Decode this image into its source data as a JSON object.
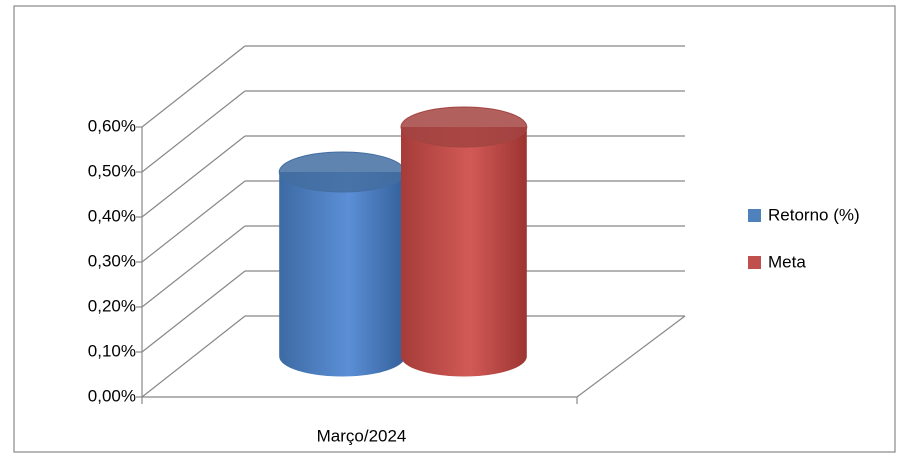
{
  "chart_data": {
    "type": "bar3d-cylinder",
    "categories": [
      "Março/2024"
    ],
    "series": [
      {
        "name": "Retorno (%)",
        "color": "#4f81bd",
        "values": [
          0.41
        ]
      },
      {
        "name": "Meta",
        "color": "#c0504d",
        "values": [
          0.51
        ]
      }
    ],
    "ylim": [
      0,
      0.6
    ],
    "yticks": [
      {
        "value": 0,
        "label": "0,00%"
      },
      {
        "value": 0.1,
        "label": "0,10%"
      },
      {
        "value": 0.2,
        "label": "0,20%"
      },
      {
        "value": 0.3,
        "label": "0,30%"
      },
      {
        "value": 0.4,
        "label": "0,40%"
      },
      {
        "value": 0.5,
        "label": "0,50%"
      },
      {
        "value": 0.6,
        "label": "0,60%"
      }
    ],
    "grid": true,
    "legend": "right"
  }
}
